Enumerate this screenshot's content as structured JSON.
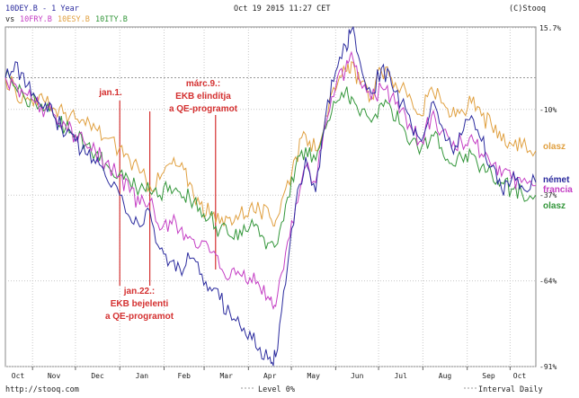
{
  "header": {
    "main_series": "10DEY.B - 1 Year",
    "timestamp": "Oct 19 2015 11:27 CET",
    "copyright": "(C)Stooq",
    "vs_label": "vs",
    "compare_series": [
      "10FRY.B",
      "10ESY.B",
      "10ITY.B"
    ]
  },
  "footer": {
    "site": "http://stooq.com",
    "level": "Level 0%",
    "interval": "Interval Daily"
  },
  "colors": {
    "DEY": "#2b2b9e",
    "FRY": "#c43ec4",
    "ESY": "#e0a040",
    "ITY": "#33963a",
    "annotation": "#d43030",
    "grid": "#c8c8c8"
  },
  "annotations": [
    {
      "label": "jan.1.",
      "date": "2015-01-01"
    },
    {
      "label": "jan.22.:",
      "label2": "EKB bejelenti",
      "label3": "a QE-programot",
      "date": "2015-01-22"
    },
    {
      "label": "márc.9.:",
      "label2": "EKB elindítja",
      "label3": "a QE-programot",
      "date": "2015-03-09"
    }
  ],
  "right_labels": {
    "olasz_top": "olasz",
    "nemet": "német",
    "francia": "francia",
    "olasz_bottom": "olasz"
  },
  "chart_data": {
    "type": "line",
    "y_ticks": [
      "15.7%",
      "-10%",
      "-37%",
      "-64%",
      "-91%"
    ],
    "y_tick_values": [
      15.7,
      -10,
      -37,
      -64,
      -91
    ],
    "ylim": [
      -91,
      15.7
    ],
    "x_ticks": [
      "Oct",
      "Nov",
      "Dec",
      "Jan",
      "Feb",
      "Mar",
      "Apr",
      "May",
      "Jun",
      "Jul",
      "Aug",
      "Sep",
      "Oct"
    ],
    "x_range": [
      "2014-10-13",
      "2015-10-19"
    ],
    "grid": true,
    "series": [
      {
        "name": "10DEY.B",
        "key": "DEY",
        "points": [
          [
            "2014-10-13",
            0
          ],
          [
            "2014-10-20",
            5
          ],
          [
            "2014-10-27",
            -3
          ],
          [
            "2014-11-03",
            -6
          ],
          [
            "2014-11-10",
            -8
          ],
          [
            "2014-11-17",
            -13
          ],
          [
            "2014-11-24",
            -18
          ],
          [
            "2014-12-01",
            -20
          ],
          [
            "2014-12-08",
            -24
          ],
          [
            "2014-12-15",
            -27
          ],
          [
            "2014-12-22",
            -31
          ],
          [
            "2015-01-01",
            -37
          ],
          [
            "2015-01-08",
            -44
          ],
          [
            "2015-01-15",
            -47
          ],
          [
            "2015-01-22",
            -42
          ],
          [
            "2015-01-29",
            -54
          ],
          [
            "2015-02-05",
            -58
          ],
          [
            "2015-02-12",
            -60
          ],
          [
            "2015-02-19",
            -57
          ],
          [
            "2015-02-26",
            -62
          ],
          [
            "2015-03-05",
            -66
          ],
          [
            "2015-03-12",
            -70
          ],
          [
            "2015-03-19",
            -74
          ],
          [
            "2015-03-26",
            -78
          ],
          [
            "2015-04-02",
            -80
          ],
          [
            "2015-04-09",
            -85
          ],
          [
            "2015-04-16",
            -88
          ],
          [
            "2015-04-20",
            -88
          ],
          [
            "2015-04-27",
            -65
          ],
          [
            "2015-05-04",
            -40
          ],
          [
            "2015-05-11",
            -25
          ],
          [
            "2015-05-18",
            -36
          ],
          [
            "2015-05-25",
            -12
          ],
          [
            "2015-06-01",
            2
          ],
          [
            "2015-06-08",
            10
          ],
          [
            "2015-06-12",
            15
          ],
          [
            "2015-06-18",
            5
          ],
          [
            "2015-06-26",
            -5
          ],
          [
            "2015-07-03",
            3
          ],
          [
            "2015-07-10",
            -2
          ],
          [
            "2015-07-17",
            -8
          ],
          [
            "2015-07-24",
            -15
          ],
          [
            "2015-07-31",
            -20
          ],
          [
            "2015-08-07",
            -8
          ],
          [
            "2015-08-14",
            -15
          ],
          [
            "2015-08-21",
            -22
          ],
          [
            "2015-08-28",
            -18
          ],
          [
            "2015-09-04",
            -12
          ],
          [
            "2015-09-11",
            -20
          ],
          [
            "2015-09-18",
            -28
          ],
          [
            "2015-09-25",
            -35
          ],
          [
            "2015-10-02",
            -32
          ],
          [
            "2015-10-09",
            -34
          ],
          [
            "2015-10-19",
            -33
          ]
        ]
      },
      {
        "name": "10FRY.B",
        "key": "FRY",
        "points": [
          [
            "2014-10-13",
            0
          ],
          [
            "2014-10-20",
            -2
          ],
          [
            "2014-10-27",
            -5
          ],
          [
            "2014-11-03",
            -8
          ],
          [
            "2014-11-10",
            -10
          ],
          [
            "2014-11-17",
            -12
          ],
          [
            "2014-11-24",
            -15
          ],
          [
            "2014-12-01",
            -18
          ],
          [
            "2014-12-08",
            -21
          ],
          [
            "2014-12-15",
            -23
          ],
          [
            "2014-12-22",
            -27
          ],
          [
            "2015-01-01",
            -31
          ],
          [
            "2015-01-08",
            -36
          ],
          [
            "2015-01-15",
            -40
          ],
          [
            "2015-01-22",
            -39
          ],
          [
            "2015-01-29",
            -48
          ],
          [
            "2015-02-05",
            -45
          ],
          [
            "2015-02-12",
            -48
          ],
          [
            "2015-02-19",
            -50
          ],
          [
            "2015-02-26",
            -53
          ],
          [
            "2015-03-05",
            -55
          ],
          [
            "2015-03-12",
            -60
          ],
          [
            "2015-03-19",
            -63
          ],
          [
            "2015-03-26",
            -62
          ],
          [
            "2015-04-02",
            -63
          ],
          [
            "2015-04-09",
            -66
          ],
          [
            "2015-04-16",
            -70
          ],
          [
            "2015-04-20",
            -72
          ],
          [
            "2015-04-27",
            -55
          ],
          [
            "2015-05-04",
            -40
          ],
          [
            "2015-05-11",
            -28
          ],
          [
            "2015-05-18",
            -33
          ],
          [
            "2015-05-25",
            -15
          ],
          [
            "2015-06-01",
            -3
          ],
          [
            "2015-06-08",
            3
          ],
          [
            "2015-06-12",
            8
          ],
          [
            "2015-06-18",
            -1
          ],
          [
            "2015-06-26",
            -7
          ],
          [
            "2015-07-03",
            -3
          ],
          [
            "2015-07-10",
            -6
          ],
          [
            "2015-07-17",
            -10
          ],
          [
            "2015-07-24",
            -16
          ],
          [
            "2015-07-31",
            -20
          ],
          [
            "2015-08-07",
            -12
          ],
          [
            "2015-08-14",
            -17
          ],
          [
            "2015-08-21",
            -22
          ],
          [
            "2015-08-28",
            -20
          ],
          [
            "2015-09-04",
            -18
          ],
          [
            "2015-09-11",
            -24
          ],
          [
            "2015-09-18",
            -28
          ],
          [
            "2015-09-25",
            -31
          ],
          [
            "2015-10-02",
            -32
          ],
          [
            "2015-10-09",
            -33
          ],
          [
            "2015-10-19",
            -34
          ]
        ]
      },
      {
        "name": "10ESY.B",
        "key": "ESY",
        "points": [
          [
            "2014-10-13",
            0
          ],
          [
            "2014-10-20",
            -4
          ],
          [
            "2014-10-27",
            -7
          ],
          [
            "2014-11-03",
            -6
          ],
          [
            "2014-11-10",
            -8
          ],
          [
            "2014-11-17",
            -10
          ],
          [
            "2014-11-24",
            -11
          ],
          [
            "2014-12-01",
            -13
          ],
          [
            "2014-12-08",
            -15
          ],
          [
            "2014-12-15",
            -16
          ],
          [
            "2014-12-22",
            -19
          ],
          [
            "2015-01-01",
            -22
          ],
          [
            "2015-01-08",
            -26
          ],
          [
            "2015-01-15",
            -30
          ],
          [
            "2015-01-22",
            -34
          ],
          [
            "2015-01-29",
            -32
          ],
          [
            "2015-02-05",
            -27
          ],
          [
            "2015-02-12",
            -28
          ],
          [
            "2015-02-19",
            -33
          ],
          [
            "2015-02-26",
            -40
          ],
          [
            "2015-03-05",
            -43
          ],
          [
            "2015-03-12",
            -46
          ],
          [
            "2015-03-19",
            -44
          ],
          [
            "2015-03-26",
            -43
          ],
          [
            "2015-04-02",
            -41
          ],
          [
            "2015-04-09",
            -42
          ],
          [
            "2015-04-16",
            -44
          ],
          [
            "2015-04-20",
            -45
          ],
          [
            "2015-04-27",
            -35
          ],
          [
            "2015-05-04",
            -25
          ],
          [
            "2015-05-11",
            -18
          ],
          [
            "2015-05-18",
            -23
          ],
          [
            "2015-05-25",
            -12
          ],
          [
            "2015-06-01",
            -4
          ],
          [
            "2015-06-08",
            2
          ],
          [
            "2015-06-12",
            5
          ],
          [
            "2015-06-18",
            -2
          ],
          [
            "2015-06-26",
            -6
          ],
          [
            "2015-07-03",
            2
          ],
          [
            "2015-07-10",
            0
          ],
          [
            "2015-07-17",
            -3
          ],
          [
            "2015-07-24",
            -7
          ],
          [
            "2015-07-31",
            -12
          ],
          [
            "2015-08-07",
            -3
          ],
          [
            "2015-08-14",
            -8
          ],
          [
            "2015-08-21",
            -12
          ],
          [
            "2015-08-28",
            -10
          ],
          [
            "2015-09-04",
            -8
          ],
          [
            "2015-09-11",
            -12
          ],
          [
            "2015-09-18",
            -15
          ],
          [
            "2015-09-25",
            -20
          ],
          [
            "2015-10-02",
            -21
          ],
          [
            "2015-10-09",
            -22
          ],
          [
            "2015-10-19",
            -23
          ]
        ]
      },
      {
        "name": "10ITY.B",
        "key": "ITY",
        "points": [
          [
            "2014-10-13",
            0
          ],
          [
            "2014-10-20",
            -3
          ],
          [
            "2014-10-27",
            -7
          ],
          [
            "2014-11-03",
            -8
          ],
          [
            "2014-11-10",
            -10
          ],
          [
            "2014-11-17",
            -13
          ],
          [
            "2014-11-24",
            -16
          ],
          [
            "2014-12-01",
            -18
          ],
          [
            "2014-12-08",
            -21
          ],
          [
            "2014-12-15",
            -24
          ],
          [
            "2014-12-22",
            -27
          ],
          [
            "2015-01-01",
            -30
          ],
          [
            "2015-01-08",
            -33
          ],
          [
            "2015-01-15",
            -35
          ],
          [
            "2015-01-22",
            -36
          ],
          [
            "2015-01-29",
            -37
          ],
          [
            "2015-02-05",
            -34
          ],
          [
            "2015-02-12",
            -36
          ],
          [
            "2015-02-19",
            -38
          ],
          [
            "2015-02-26",
            -41
          ],
          [
            "2015-03-05",
            -44
          ],
          [
            "2015-03-12",
            -48
          ],
          [
            "2015-03-19",
            -50
          ],
          [
            "2015-03-26",
            -48
          ],
          [
            "2015-04-02",
            -47
          ],
          [
            "2015-04-09",
            -50
          ],
          [
            "2015-04-16",
            -52
          ],
          [
            "2015-04-20",
            -53
          ],
          [
            "2015-04-27",
            -40
          ],
          [
            "2015-05-04",
            -28
          ],
          [
            "2015-05-11",
            -22
          ],
          [
            "2015-05-18",
            -26
          ],
          [
            "2015-05-25",
            -16
          ],
          [
            "2015-06-01",
            -8
          ],
          [
            "2015-06-08",
            -4
          ],
          [
            "2015-06-12",
            -6
          ],
          [
            "2015-06-18",
            -12
          ],
          [
            "2015-06-26",
            -14
          ],
          [
            "2015-07-03",
            -8
          ],
          [
            "2015-07-10",
            -10
          ],
          [
            "2015-07-17",
            -15
          ],
          [
            "2015-07-24",
            -20
          ],
          [
            "2015-07-31",
            -22
          ],
          [
            "2015-08-07",
            -18
          ],
          [
            "2015-08-14",
            -22
          ],
          [
            "2015-08-21",
            -27
          ],
          [
            "2015-08-28",
            -25
          ],
          [
            "2015-09-04",
            -24
          ],
          [
            "2015-09-11",
            -28
          ],
          [
            "2015-09-18",
            -30
          ],
          [
            "2015-09-25",
            -33
          ],
          [
            "2015-10-02",
            -35
          ],
          [
            "2015-10-09",
            -36
          ],
          [
            "2015-10-19",
            -37
          ]
        ]
      }
    ]
  }
}
